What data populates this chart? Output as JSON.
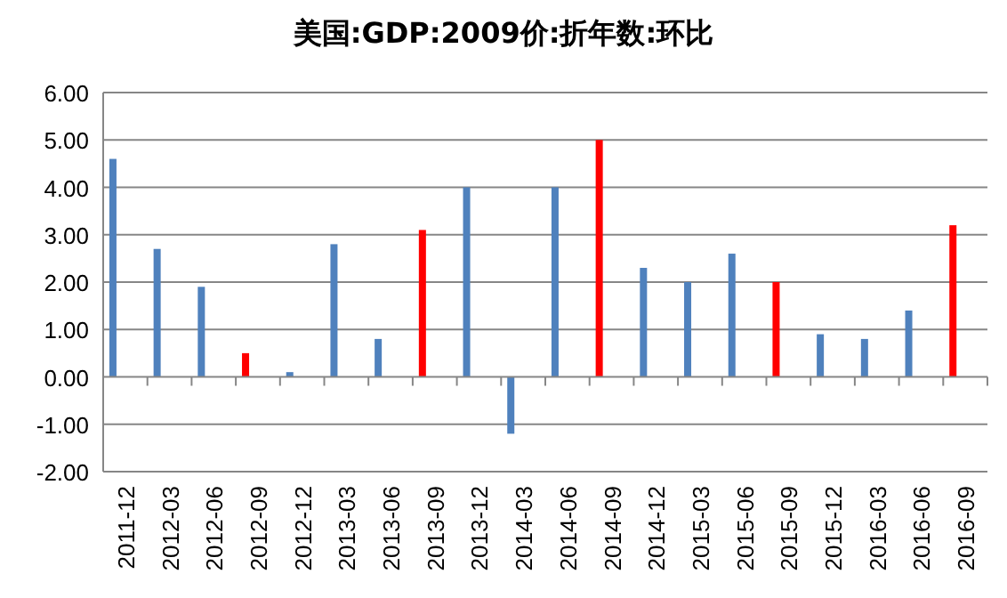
{
  "chart_data": {
    "type": "bar",
    "title": "美国:GDP:2009价:折年数:环比",
    "categories": [
      "2011-12",
      "2012-03",
      "2012-06",
      "2012-09",
      "2012-12",
      "2013-03",
      "2013-06",
      "2013-09",
      "2013-12",
      "2014-03",
      "2014-06",
      "2014-09",
      "2014-12",
      "2015-03",
      "2015-06",
      "2015-09",
      "2015-12",
      "2016-03",
      "2016-06",
      "2016-09"
    ],
    "values": [
      4.6,
      2.7,
      1.9,
      0.5,
      0.1,
      2.8,
      0.8,
      3.1,
      4.0,
      -1.2,
      4.0,
      5.0,
      2.3,
      2.0,
      2.6,
      2.0,
      0.9,
      0.8,
      1.4,
      3.2
    ],
    "colors": [
      "#4f81bd",
      "#4f81bd",
      "#4f81bd",
      "#ff0000",
      "#4f81bd",
      "#4f81bd",
      "#4f81bd",
      "#ff0000",
      "#4f81bd",
      "#4f81bd",
      "#4f81bd",
      "#ff0000",
      "#4f81bd",
      "#4f81bd",
      "#4f81bd",
      "#ff0000",
      "#4f81bd",
      "#4f81bd",
      "#4f81bd",
      "#ff0000"
    ],
    "ylim": [
      -2,
      6
    ],
    "yticks": [
      {
        "value": -2,
        "label": "-2.00"
      },
      {
        "value": -1,
        "label": "-1.00"
      },
      {
        "value": 0,
        "label": "0.00"
      },
      {
        "value": 1,
        "label": "1.00"
      },
      {
        "value": 2,
        "label": "2.00"
      },
      {
        "value": 3,
        "label": "3.00"
      },
      {
        "value": 4,
        "label": "4.00"
      },
      {
        "value": 5,
        "label": "5.00"
      },
      {
        "value": 6,
        "label": "6.00"
      }
    ],
    "grid": "y"
  }
}
